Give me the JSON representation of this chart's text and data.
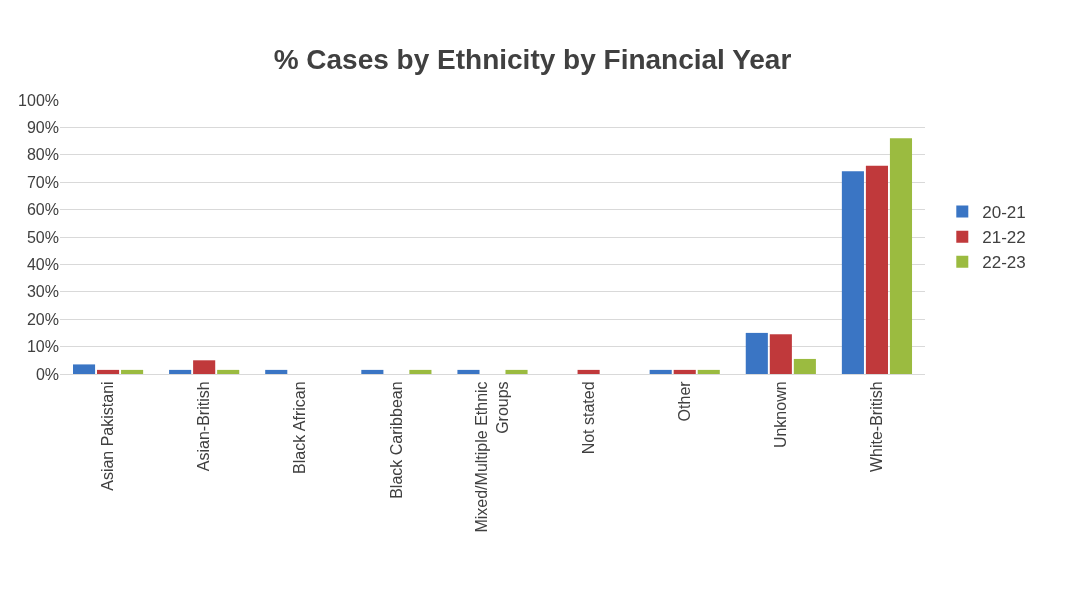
{
  "chart_data": {
    "type": "bar",
    "title": "% Cases by Ethnicity by Financial Year",
    "categories": [
      "Asian Pakistani",
      "Asian-British",
      "Black African",
      "Black Caribbean",
      "Mixed/Multiple Ethnic Groups",
      "Not stated",
      "Other",
      "Unknown",
      "White-British"
    ],
    "series": [
      {
        "name": "20-21",
        "color": "#3a75c4",
        "values": [
          3.5,
          1.5,
          1.5,
          1.5,
          1.5,
          null,
          1.5,
          15,
          74
        ]
      },
      {
        "name": "21-22",
        "color": "#c0393b",
        "values": [
          1.5,
          5,
          null,
          null,
          null,
          1.5,
          1.5,
          14.5,
          76
        ]
      },
      {
        "name": "22-23",
        "color": "#9bbb40",
        "values": [
          1.5,
          1.5,
          null,
          1.5,
          1.5,
          null,
          1.5,
          5.5,
          86
        ]
      }
    ],
    "ylim": [
      0,
      100
    ],
    "yticks": [
      {
        "value": 0,
        "label": "0%"
      },
      {
        "value": 10,
        "label": "10%"
      },
      {
        "value": 20,
        "label": "20%"
      },
      {
        "value": 30,
        "label": "30%"
      },
      {
        "value": 40,
        "label": "40%"
      },
      {
        "value": 50,
        "label": "50%"
      },
      {
        "value": 60,
        "label": "60%"
      },
      {
        "value": 70,
        "label": "70%"
      },
      {
        "value": 80,
        "label": "80%"
      },
      {
        "value": 90,
        "label": "90%"
      },
      {
        "value": 100,
        "label": "100%"
      }
    ],
    "grid": "y",
    "legend": "right"
  }
}
